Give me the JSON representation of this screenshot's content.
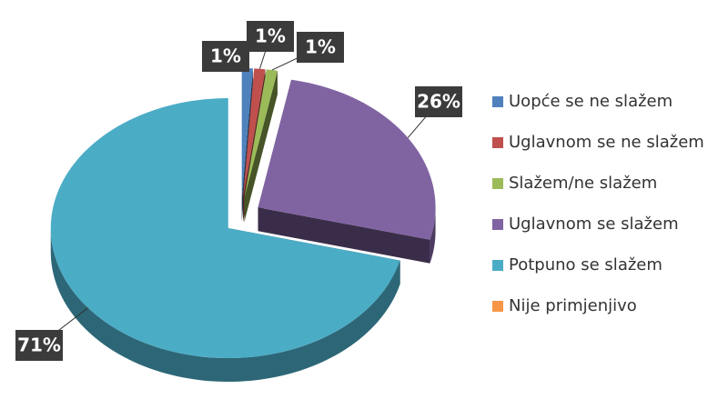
{
  "chart_data": {
    "type": "pie",
    "categories": [
      "Uopće se ne slažem",
      "Uglavnom se ne slažem",
      "Slažem/ne slažem",
      "Uglavnom se slažem",
      "Potpuno se slažem",
      "Nije primjenjivo"
    ],
    "values": [
      1,
      1,
      1,
      26,
      71,
      0
    ],
    "value_labels": [
      "1%",
      "1%",
      "1%",
      "26%",
      "71%",
      null
    ],
    "colors": [
      "#4f81bd",
      "#c0504d",
      "#9bbb59",
      "#8064a2",
      "#4bacc6",
      "#f79646"
    ],
    "legend": "right",
    "exploded": true,
    "three_d": true
  }
}
